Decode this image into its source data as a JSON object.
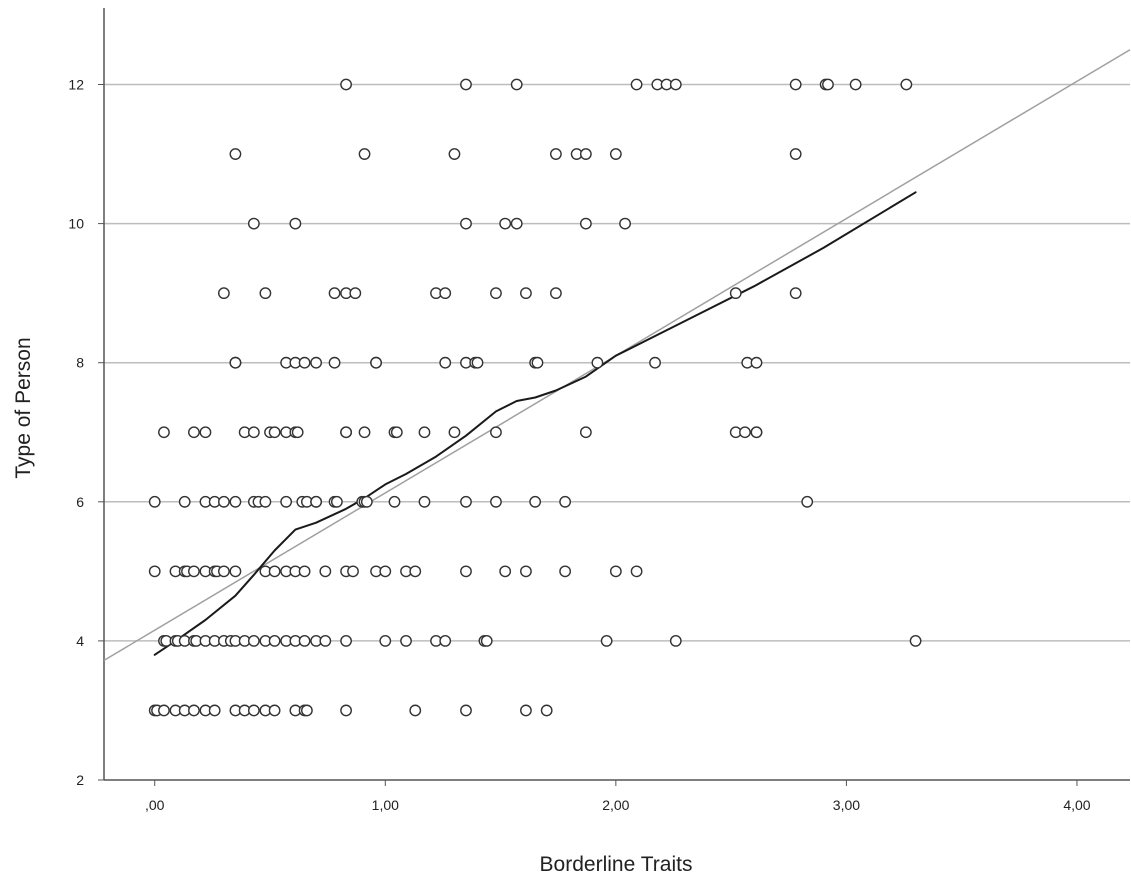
{
  "chart_data": {
    "type": "scatter",
    "xlabel": "Borderline Traits",
    "ylabel": "Type of Person",
    "xlim": [
      -0.22,
      4.23
    ],
    "ylim": [
      2,
      13.1
    ],
    "x_ticks": [
      0,
      1,
      2,
      3,
      4
    ],
    "x_tick_labels": [
      ",00",
      "1,00",
      "2,00",
      "3,00",
      "4,00"
    ],
    "y_ticks": [
      2,
      4,
      6,
      8,
      10,
      12
    ],
    "y_tick_labels": [
      "2",
      "4",
      "6",
      "8",
      "10",
      "12"
    ],
    "grid": "horizontal",
    "points": [
      {
        "y": 12,
        "x": [
          0.83,
          1.35,
          1.57,
          2.09,
          2.18,
          2.22,
          2.26,
          2.78,
          2.91,
          2.92,
          3.04,
          3.26
        ]
      },
      {
        "y": 11,
        "x": [
          0.35,
          0.91,
          1.3,
          1.74,
          1.83,
          1.87,
          2.0,
          2.78
        ]
      },
      {
        "y": 10,
        "x": [
          0.43,
          0.61,
          1.35,
          1.52,
          1.57,
          1.87,
          2.04
        ]
      },
      {
        "y": 9,
        "x": [
          0.3,
          0.48,
          0.78,
          0.83,
          0.87,
          1.22,
          1.26,
          1.48,
          1.61,
          1.74,
          2.52,
          2.78
        ]
      },
      {
        "y": 8,
        "x": [
          0.35,
          0.35,
          0.57,
          0.61,
          0.65,
          0.7,
          0.78,
          0.96,
          0.96,
          1.26,
          1.35,
          1.39,
          1.4,
          1.65,
          1.66,
          1.92,
          2.17,
          2.57,
          2.61
        ]
      },
      {
        "y": 7,
        "x": [
          0.04,
          0.17,
          0.22,
          0.39,
          0.43,
          0.5,
          0.52,
          0.57,
          0.61,
          0.62,
          0.83,
          0.83,
          0.91,
          1.04,
          1.05,
          1.17,
          1.3,
          1.48,
          1.87,
          2.52,
          2.56,
          2.61,
          2.61
        ]
      },
      {
        "y": 6,
        "x": [
          0,
          0.13,
          0.22,
          0.26,
          0.3,
          0.35,
          0.43,
          0.45,
          0.48,
          0.57,
          0.64,
          0.66,
          0.7,
          0.7,
          0.78,
          0.79,
          0.9,
          0.91,
          0.92,
          1.04,
          1.17,
          1.35,
          1.48,
          1.65,
          1.78,
          2.83
        ]
      },
      {
        "y": 5,
        "x": [
          0,
          0.09,
          0.13,
          0.14,
          0.17,
          0.22,
          0.26,
          0.27,
          0.3,
          0.35,
          0.48,
          0.52,
          0.57,
          0.61,
          0.65,
          0.74,
          0.83,
          0.86,
          0.96,
          1.0,
          1.09,
          1.13,
          1.35,
          1.52,
          1.61,
          1.78,
          2.0,
          2.09
        ]
      },
      {
        "y": 4,
        "x": [
          0.04,
          0.05,
          0.09,
          0.1,
          0.13,
          0.17,
          0.18,
          0.22,
          0.26,
          0.3,
          0.33,
          0.35,
          0.39,
          0.43,
          0.48,
          0.52,
          0.57,
          0.61,
          0.65,
          0.7,
          0.74,
          0.83,
          1.0,
          1.09,
          1.22,
          1.26,
          1.43,
          1.44,
          1.96,
          2.26,
          3.3
        ]
      },
      {
        "y": 3,
        "x": [
          0,
          0.01,
          0.04,
          0.09,
          0.13,
          0.17,
          0.22,
          0.26,
          0.35,
          0.39,
          0.43,
          0.48,
          0.52,
          0.61,
          0.65,
          0.66,
          0.83,
          1.13,
          1.35,
          1.61,
          1.7
        ]
      }
    ],
    "fit_line": {
      "x": [
        -0.22,
        4.23
      ],
      "y": [
        3.72,
        12.5
      ]
    },
    "loess": {
      "x": [
        0,
        0.09,
        0.22,
        0.35,
        0.43,
        0.52,
        0.61,
        0.7,
        0.83,
        0.91,
        1.0,
        1.09,
        1.22,
        1.35,
        1.48,
        1.57,
        1.65,
        1.74,
        1.87,
        2.0,
        2.3,
        2.6,
        2.9,
        3.3
      ],
      "y": [
        3.8,
        4.0,
        4.3,
        4.65,
        4.95,
        5.3,
        5.6,
        5.7,
        5.9,
        6.05,
        6.25,
        6.4,
        6.65,
        6.95,
        7.3,
        7.45,
        7.5,
        7.6,
        7.8,
        8.1,
        8.6,
        9.1,
        9.65,
        10.45
      ]
    },
    "colors": {
      "fit_line": "#a0a0a0",
      "loess": "#1a1a1a",
      "marker_stroke": "#333333",
      "grid": "#bdbdbd",
      "axis": "#555555"
    }
  }
}
